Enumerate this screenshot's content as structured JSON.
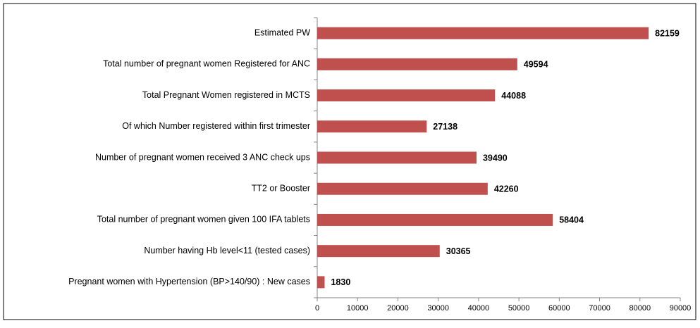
{
  "chart_data": {
    "type": "bar",
    "orientation": "horizontal",
    "categories": [
      "Estimated PW",
      "Total number of pregnant women Registered for ANC",
      "Total Pregnant Women registered in MCTS",
      "Of which Number registered within first trimester",
      "Number of pregnant women received 3 ANC check ups",
      "TT2 or Booster",
      "Total number of pregnant women given 100 IFA tablets",
      "Number having Hb level<11 (tested cases)",
      "Pregnant women with Hypertension (BP>140/90) : New cases"
    ],
    "values": [
      82159,
      49594,
      44088,
      27138,
      39490,
      42260,
      58404,
      30365,
      1830
    ],
    "color": "#c0504d",
    "xlim": [
      0,
      90000
    ],
    "xticks": [
      0,
      10000,
      20000,
      30000,
      40000,
      50000,
      60000,
      70000,
      80000,
      90000
    ],
    "grid": false
  }
}
